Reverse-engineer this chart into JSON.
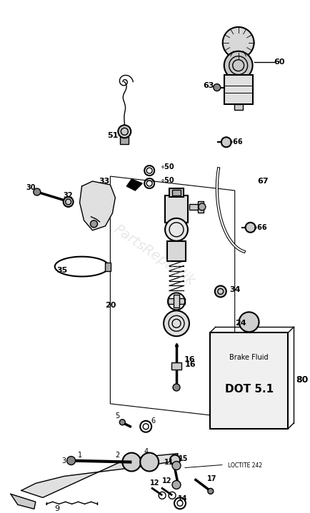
{
  "bg_color": "#ffffff",
  "watermark": "PartsRepublik",
  "brake_fluid_label1": "Brake Fluid",
  "brake_fluid_label2": "DOT 5.1",
  "loctite_text": "LOCTITE 242",
  "figsize": [
    4.34,
    7.19
  ],
  "dpi": 100
}
